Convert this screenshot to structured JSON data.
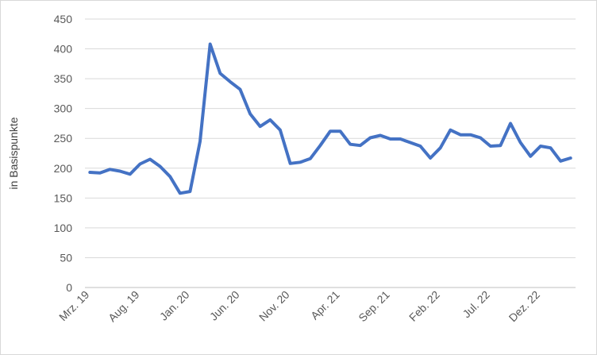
{
  "chart_data": {
    "type": "line",
    "title": "",
    "xlabel": "",
    "ylabel": "in Basispunkte",
    "ylim": [
      0,
      450
    ],
    "yticks": [
      0,
      50,
      100,
      150,
      200,
      250,
      300,
      350,
      400,
      450
    ],
    "grid": true,
    "legend": "none",
    "x_tick_labels": [
      "Mrz. 19",
      "Aug. 19",
      "Jan. 20",
      "Jun. 20",
      "Nov. 20",
      "Apr. 21",
      "Sep. 21",
      "Feb. 22",
      "Jul. 22",
      "Dez. 22"
    ],
    "x_tick_step_months": 5,
    "series": [
      {
        "color": "#4472C4",
        "values": [
          193,
          192,
          198,
          195,
          190,
          207,
          215,
          203,
          186,
          158,
          161,
          245,
          408,
          359,
          345,
          332,
          291,
          270,
          281,
          264,
          208,
          210,
          216,
          238,
          262,
          262,
          240,
          238,
          251,
          255,
          249,
          249,
          243,
          237,
          217,
          234,
          264,
          256,
          256,
          251,
          237,
          238,
          275,
          243,
          220,
          237,
          234,
          212,
          217
        ]
      }
    ]
  }
}
